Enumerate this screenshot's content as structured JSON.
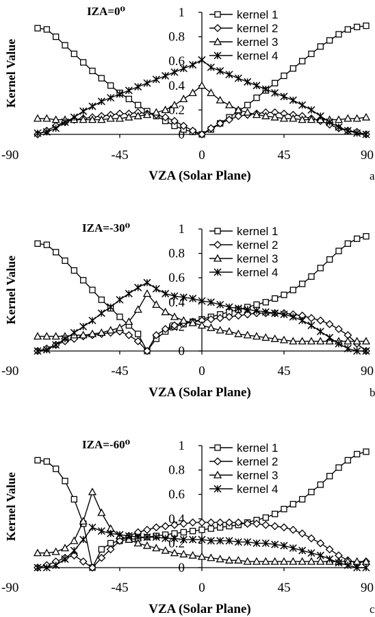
{
  "chart_data": [
    {
      "type": "line",
      "title": "IZA=0⁰",
      "xlabel": "VZA (Solar Plane)",
      "ylabel": "Kernel Value",
      "panel_label": "a",
      "xlim": [
        -90,
        90
      ],
      "ylim": [
        0,
        1
      ],
      "x_ticks": [
        -90,
        -45,
        0,
        45,
        90
      ],
      "y_ticks": [
        0,
        0.2,
        0.4,
        0.6,
        0.8,
        1
      ],
      "y_tick_labels": [
        "0",
        "0.2",
        "0.4",
        "0.6",
        "0.8",
        "1"
      ],
      "grid": false,
      "legend_position": "top-right",
      "x": [
        -90,
        -85,
        -80,
        -75,
        -70,
        -65,
        -60,
        -55,
        -50,
        -45,
        -40,
        -35,
        -30,
        -25,
        -20,
        -15,
        -10,
        -5,
        0,
        5,
        10,
        15,
        20,
        25,
        30,
        35,
        40,
        45,
        50,
        55,
        60,
        65,
        70,
        75,
        80,
        85,
        90
      ],
      "series": [
        {
          "name": "kernel 1",
          "marker": "square",
          "values": [
            0.87,
            0.86,
            0.8,
            0.73,
            0.66,
            0.59,
            0.52,
            0.46,
            0.4,
            0.34,
            0.29,
            0.24,
            0.19,
            0.15,
            0.11,
            0.07,
            0.04,
            0.02,
            0.0,
            0.04,
            0.09,
            0.14,
            0.19,
            0.24,
            0.3,
            0.36,
            0.42,
            0.48,
            0.54,
            0.6,
            0.66,
            0.72,
            0.77,
            0.82,
            0.86,
            0.88,
            0.89
          ]
        },
        {
          "name": "kernel 2",
          "marker": "diamond",
          "values": [
            0.0,
            0.03,
            0.07,
            0.1,
            0.12,
            0.13,
            0.14,
            0.15,
            0.16,
            0.17,
            0.17,
            0.18,
            0.17,
            0.16,
            0.14,
            0.11,
            0.07,
            0.03,
            0.0,
            0.05,
            0.09,
            0.12,
            0.15,
            0.16,
            0.17,
            0.18,
            0.18,
            0.17,
            0.16,
            0.15,
            0.13,
            0.11,
            0.08,
            0.05,
            0.03,
            0.02,
            0.0
          ]
        },
        {
          "name": "kernel 3",
          "marker": "triangle",
          "values": [
            0.13,
            0.13,
            0.12,
            0.12,
            0.12,
            0.12,
            0.12,
            0.12,
            0.13,
            0.13,
            0.14,
            0.15,
            0.16,
            0.18,
            0.2,
            0.24,
            0.29,
            0.34,
            0.4,
            0.34,
            0.28,
            0.24,
            0.2,
            0.18,
            0.16,
            0.15,
            0.14,
            0.13,
            0.13,
            0.12,
            0.12,
            0.12,
            0.12,
            0.12,
            0.13,
            0.13,
            0.14
          ]
        },
        {
          "name": "kernel 4",
          "marker": "star",
          "values": [
            0.01,
            0.02,
            0.05,
            0.1,
            0.14,
            0.19,
            0.23,
            0.27,
            0.3,
            0.33,
            0.36,
            0.39,
            0.42,
            0.45,
            0.48,
            0.51,
            0.54,
            0.57,
            0.61,
            0.55,
            0.52,
            0.49,
            0.46,
            0.43,
            0.4,
            0.37,
            0.34,
            0.31,
            0.28,
            0.24,
            0.2,
            0.15,
            0.1,
            0.06,
            0.03,
            0.01,
            0.0
          ]
        }
      ]
    },
    {
      "type": "line",
      "title": "IZA=-30⁰",
      "xlabel": "VZA (Solar Plane)",
      "ylabel": "Kernel Value",
      "panel_label": "b",
      "xlim": [
        -90,
        90
      ],
      "ylim": [
        0,
        1
      ],
      "x_ticks": [
        -90,
        -45,
        0,
        45,
        90
      ],
      "x_tick_labels": [
        "-90",
        "-45",
        "0",
        "45",
        "90"
      ],
      "y_ticks": [
        0,
        0.2,
        0.4,
        0.6,
        0.8,
        1
      ],
      "y_tick_labels": [
        "0",
        "0.2",
        "0.4",
        "0.6",
        "0.8",
        "1"
      ],
      "grid": false,
      "legend_position": "top-right",
      "x": [
        -90,
        -85,
        -80,
        -75,
        -70,
        -65,
        -60,
        -55,
        -50,
        -45,
        -40,
        -35,
        -30,
        -25,
        -20,
        -15,
        -10,
        -5,
        0,
        5,
        10,
        15,
        20,
        25,
        30,
        35,
        40,
        45,
        50,
        55,
        60,
        65,
        70,
        75,
        80,
        85,
        90
      ],
      "series": [
        {
          "name": "kernel 1",
          "marker": "square",
          "values": [
            0.88,
            0.87,
            0.81,
            0.74,
            0.66,
            0.58,
            0.5,
            0.42,
            0.35,
            0.28,
            0.21,
            0.14,
            0.0,
            0.1,
            0.16,
            0.2,
            0.22,
            0.24,
            0.26,
            0.28,
            0.3,
            0.32,
            0.34,
            0.36,
            0.38,
            0.4,
            0.43,
            0.46,
            0.5,
            0.55,
            0.61,
            0.68,
            0.75,
            0.82,
            0.88,
            0.92,
            0.94
          ]
        },
        {
          "name": "kernel 2",
          "marker": "diamond",
          "values": [
            0.0,
            0.02,
            0.05,
            0.08,
            0.1,
            0.12,
            0.13,
            0.14,
            0.15,
            0.16,
            0.13,
            0.08,
            0.0,
            0.13,
            0.18,
            0.21,
            0.23,
            0.24,
            0.25,
            0.26,
            0.27,
            0.28,
            0.29,
            0.3,
            0.31,
            0.31,
            0.31,
            0.31,
            0.3,
            0.29,
            0.27,
            0.25,
            0.22,
            0.18,
            0.13,
            0.06,
            0.0
          ]
        },
        {
          "name": "kernel 3",
          "marker": "triangle",
          "values": [
            0.12,
            0.12,
            0.12,
            0.12,
            0.13,
            0.13,
            0.14,
            0.15,
            0.17,
            0.19,
            0.24,
            0.34,
            0.47,
            0.38,
            0.32,
            0.28,
            0.25,
            0.23,
            0.21,
            0.19,
            0.17,
            0.16,
            0.14,
            0.13,
            0.12,
            0.11,
            0.1,
            0.09,
            0.08,
            0.08,
            0.08,
            0.08,
            0.08,
            0.08,
            0.08,
            0.08,
            0.08
          ]
        },
        {
          "name": "kernel 4",
          "marker": "star",
          "values": [
            0.0,
            0.01,
            0.05,
            0.1,
            0.15,
            0.2,
            0.25,
            0.31,
            0.36,
            0.42,
            0.47,
            0.52,
            0.56,
            0.51,
            0.47,
            0.45,
            0.44,
            0.43,
            0.41,
            0.4,
            0.38,
            0.36,
            0.35,
            0.34,
            0.33,
            0.32,
            0.31,
            0.3,
            0.28,
            0.25,
            0.21,
            0.16,
            0.11,
            0.06,
            0.02,
            0.0,
            0.0
          ]
        }
      ]
    },
    {
      "type": "line",
      "title": "IZA=-60⁰",
      "xlabel": "VZA (Solar Plane)",
      "ylabel": "Kernel Value",
      "panel_label": "c",
      "xlim": [
        -90,
        90
      ],
      "ylim": [
        0,
        1
      ],
      "x_ticks": [
        -90,
        -45,
        0,
        45,
        90
      ],
      "x_tick_labels": [
        "-90",
        "-45",
        "0",
        "45",
        "90"
      ],
      "y_ticks": [
        0,
        0.2,
        0.4,
        0.6,
        0.8,
        1
      ],
      "y_tick_labels": [
        "0",
        "0.2",
        "0.4",
        "0.6",
        "0.8",
        "1"
      ],
      "grid": false,
      "legend_position": "top-right",
      "x": [
        -90,
        -85,
        -80,
        -75,
        -70,
        -65,
        -60,
        -55,
        -50,
        -45,
        -40,
        -35,
        -30,
        -25,
        -20,
        -15,
        -10,
        -5,
        0,
        5,
        10,
        15,
        20,
        25,
        30,
        35,
        40,
        45,
        50,
        55,
        60,
        65,
        70,
        75,
        80,
        85,
        90
      ],
      "series": [
        {
          "name": "kernel 1",
          "marker": "square",
          "values": [
            0.88,
            0.87,
            0.81,
            0.71,
            0.56,
            0.36,
            0.0,
            0.15,
            0.2,
            0.22,
            0.23,
            0.24,
            0.25,
            0.26,
            0.27,
            0.28,
            0.29,
            0.3,
            0.31,
            0.32,
            0.33,
            0.34,
            0.35,
            0.37,
            0.39,
            0.41,
            0.44,
            0.48,
            0.52,
            0.56,
            0.62,
            0.68,
            0.75,
            0.82,
            0.88,
            0.93,
            0.95
          ]
        },
        {
          "name": "kernel 2",
          "marker": "diamond",
          "values": [
            0.0,
            0.02,
            0.05,
            0.08,
            0.1,
            0.05,
            0.0,
            0.08,
            0.15,
            0.22,
            0.26,
            0.29,
            0.31,
            0.33,
            0.34,
            0.35,
            0.36,
            0.37,
            0.37,
            0.37,
            0.37,
            0.37,
            0.37,
            0.36,
            0.36,
            0.35,
            0.34,
            0.33,
            0.31,
            0.28,
            0.24,
            0.2,
            0.15,
            0.1,
            0.06,
            0.04,
            0.05
          ]
        },
        {
          "name": "kernel 3",
          "marker": "triangle",
          "values": [
            0.12,
            0.12,
            0.13,
            0.16,
            0.22,
            0.38,
            0.62,
            0.45,
            0.32,
            0.26,
            0.23,
            0.2,
            0.18,
            0.16,
            0.14,
            0.12,
            0.11,
            0.1,
            0.09,
            0.08,
            0.07,
            0.06,
            0.06,
            0.05,
            0.05,
            0.05,
            0.05,
            0.05,
            0.05,
            0.05,
            0.05,
            0.05,
            0.05,
            0.05,
            0.05,
            0.05,
            0.05
          ]
        },
        {
          "name": "kernel 4",
          "marker": "star",
          "values": [
            0.0,
            0.0,
            0.02,
            0.07,
            0.14,
            0.23,
            0.33,
            0.3,
            0.28,
            0.27,
            0.26,
            0.25,
            0.25,
            0.25,
            0.24,
            0.24,
            0.23,
            0.23,
            0.23,
            0.22,
            0.22,
            0.22,
            0.21,
            0.21,
            0.2,
            0.2,
            0.19,
            0.18,
            0.16,
            0.14,
            0.12,
            0.1,
            0.07,
            0.04,
            0.02,
            0.0,
            0.0
          ]
        }
      ]
    }
  ]
}
